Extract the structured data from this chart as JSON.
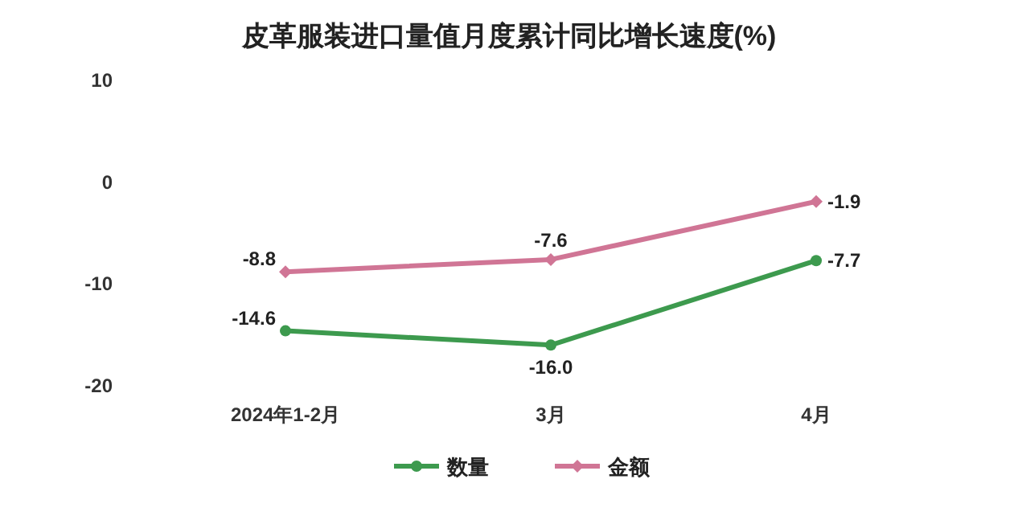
{
  "chart_data": {
    "type": "line",
    "title": "皮革服装进口量值月度累计同比增长速度(%)",
    "categories": [
      "2024年1-2月",
      "3月",
      "4月"
    ],
    "series": [
      {
        "name": "数量",
        "color": "#3d9a4e",
        "values": [
          -14.6,
          -16.0,
          -7.7
        ],
        "value_labels": [
          "-14.6",
          "-16.0",
          "-7.7"
        ],
        "marker": "circle"
      },
      {
        "name": "金额",
        "color": "#d07595",
        "values": [
          -8.8,
          -7.6,
          -1.9
        ],
        "value_labels": [
          "-8.8",
          "-7.6",
          "-1.9"
        ],
        "marker": "diamond"
      }
    ],
    "ylim": [
      -20,
      10
    ],
    "yticks": [
      -20,
      -10,
      0,
      10
    ],
    "legend": "bottom",
    "grid": false,
    "line_style": "solid"
  }
}
